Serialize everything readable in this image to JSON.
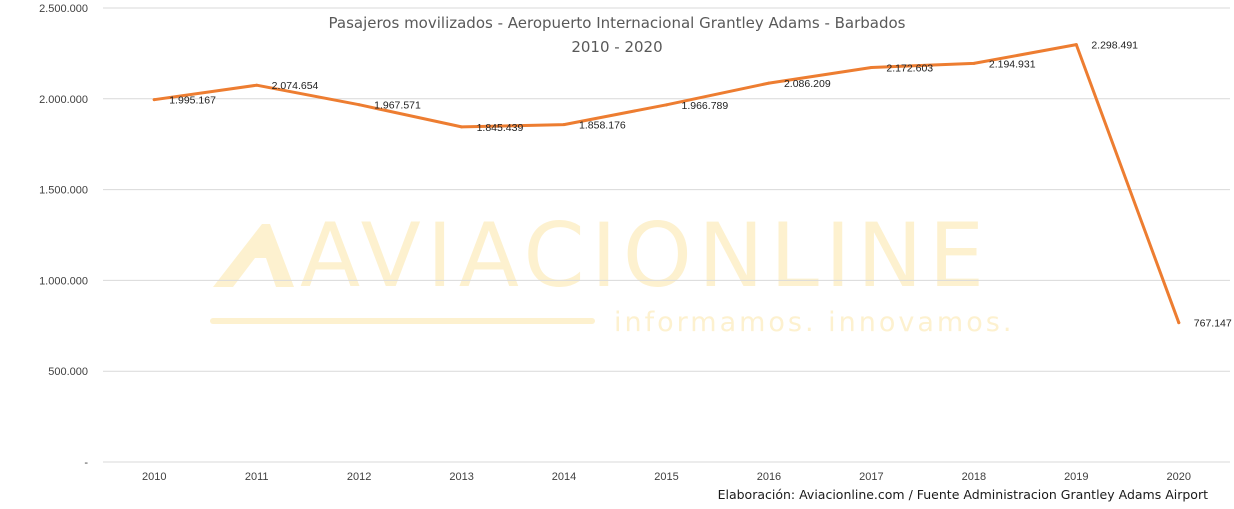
{
  "chart_data": {
    "type": "line",
    "title": "Pasajeros movilizados - Aeropuerto Internacional Grantley Adams - Barbados",
    "subtitle": "2010 - 2020",
    "categories": [
      "2010",
      "2011",
      "2012",
      "2013",
      "2014",
      "2015",
      "2016",
      "2017",
      "2018",
      "2019",
      "2020"
    ],
    "series": [
      {
        "values": [
          1995167,
          2074654,
          1967571,
          1845439,
          1858176,
          1966789,
          2086209,
          2172603,
          2194931,
          2298491,
          767147
        ],
        "labels": [
          "1.995.167",
          "2.074.654",
          "1.967.571",
          "1.845.439",
          "1.858.176",
          "1.966.789",
          "2.086.209",
          "2.172.603",
          "2.194.931",
          "2.298.491",
          "767.147"
        ],
        "color": "#ed7d31"
      }
    ],
    "y_ticks": [
      {
        "value": 0,
        "label": "-"
      },
      {
        "value": 500000,
        "label": "500.000"
      },
      {
        "value": 1000000,
        "label": "1.000.000"
      },
      {
        "value": 1500000,
        "label": "1.500.000"
      },
      {
        "value": 2000000,
        "label": "2.000.000"
      },
      {
        "value": 2500000,
        "label": "2.500.000"
      }
    ],
    "ylim": [
      0,
      2500000
    ],
    "grid": true,
    "legend": "none",
    "gridline_color": "#d9d9d9"
  },
  "watermark": {
    "brand": "AVIACIONLINE",
    "tagline": "informamos. innovamos.",
    "color": "#fdf1cf"
  },
  "footer": {
    "credit": "Elaboración: Aviacionline.com / Fuente Administracion Grantley Adams Airport"
  }
}
